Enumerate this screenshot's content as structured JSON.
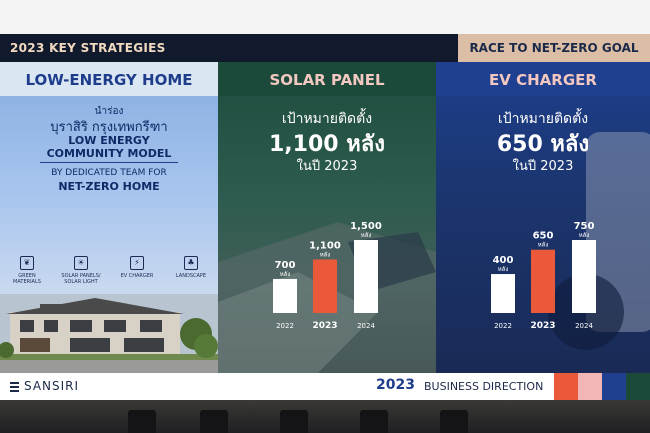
{
  "header": {
    "left_title": "2023 KEY STRATEGIES",
    "right_title": "RACE TO NET-ZERO GOAL"
  },
  "low_energy": {
    "title": "LOW-ENERGY HOME",
    "pilot_label": "นำร่อง",
    "project_name": "บุราสิริ กรุงเทพกรีฑา",
    "model_line1": "LOW ENERGY",
    "model_line2": "COMMUNITY MODEL",
    "team_line1": "BY DEDICATED TEAM FOR",
    "team_line2": "NET-ZERO HOME",
    "features": [
      {
        "icon": "leaf-icon",
        "label1": "GREEN",
        "label2": "MATERIALS"
      },
      {
        "icon": "sun-icon",
        "label1": "SOLAR PANELS/",
        "label2": "SOLAR LIGHT"
      },
      {
        "icon": "ev-plug-icon",
        "label1": "EV CHARGER",
        "label2": ""
      },
      {
        "icon": "tree-icon",
        "label1": "LANDSCAPE",
        "label2": ""
      }
    ]
  },
  "solar": {
    "title": "SOLAR PANEL",
    "goal_line1": "เป้าหมายติดตั้ง",
    "goal_line2": "1,100 หลัง",
    "goal_line3": "ในปี 2023",
    "unit": "หลัง",
    "bars": [
      {
        "year": "2022",
        "value": 700,
        "label": "700",
        "highlight": false
      },
      {
        "year": "2023",
        "value": 1100,
        "label": "1,100",
        "highlight": true
      },
      {
        "year": "2024",
        "value": 1500,
        "label": "1,500",
        "highlight": false
      }
    ],
    "max": 1500
  },
  "ev": {
    "title": "EV CHARGER",
    "goal_line1": "เป้าหมายติดตั้ง",
    "goal_line2": "650 หลัง",
    "goal_line3": "ในปี 2023",
    "unit": "หลัง",
    "bars": [
      {
        "year": "2022",
        "value": 400,
        "label": "400",
        "highlight": false
      },
      {
        "year": "2023",
        "value": 650,
        "label": "650",
        "highlight": true
      },
      {
        "year": "2024",
        "value": 750,
        "label": "750",
        "highlight": false
      }
    ],
    "max": 750
  },
  "footer": {
    "brand": "SANSIRI",
    "year": "2023",
    "direction": "BUSINESS DIRECTION",
    "swatches": [
      "#ea5a3a",
      "#f2b6b6",
      "#1f3f90",
      "#1b4a3a"
    ]
  },
  "colors": {
    "navy": "#1e3e8c",
    "highlight_bar": "#ea5a3a",
    "bar": "#ffffff",
    "pink_title": "#f2c8c0"
  }
}
